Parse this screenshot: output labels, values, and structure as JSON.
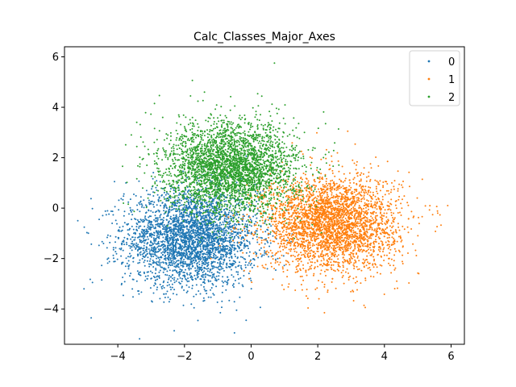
{
  "chart_data": {
    "type": "scatter",
    "title": "Calc_Classes_Major_Axes",
    "xlabel": "",
    "ylabel": "",
    "xlim": [
      -5.6,
      6.4
    ],
    "ylim": [
      -5.4,
      6.4
    ],
    "x_ticks": [
      -4,
      -2,
      0,
      2,
      4,
      6
    ],
    "y_ticks": [
      -4,
      -2,
      0,
      2,
      4,
      6
    ],
    "grid": false,
    "legend_position": "top-right",
    "series": [
      {
        "name": "0",
        "color": "#1f77b4",
        "cluster": {
          "center": [
            -1.8,
            -1.2
          ],
          "std": [
            1.0,
            0.95
          ],
          "n": 3200
        },
        "highlight_points": [
          [
            -5.2,
            -0.5
          ],
          [
            -4.8,
            -4.35
          ],
          [
            -0.5,
            -4.95
          ],
          [
            -4.1,
            1.05
          ]
        ]
      },
      {
        "name": "1",
        "color": "#ff7f0e",
        "cluster": {
          "center": [
            2.4,
            -0.6
          ],
          "std": [
            1.0,
            0.95
          ],
          "n": 3200
        },
        "highlight_points": [
          [
            5.9,
            0.1
          ],
          [
            5.6,
            -0.2
          ],
          [
            2.2,
            -4.15
          ],
          [
            2.9,
            3.05
          ]
        ]
      },
      {
        "name": "2",
        "color": "#2ca02c",
        "cluster": {
          "center": [
            -0.6,
            1.6
          ],
          "std": [
            1.0,
            0.9
          ],
          "n": 3200
        },
        "highlight_points": [
          [
            0.7,
            5.75
          ],
          [
            -1.4,
            4.6
          ],
          [
            -2.9,
            4.15
          ],
          [
            1.6,
            3.0
          ]
        ]
      }
    ]
  }
}
